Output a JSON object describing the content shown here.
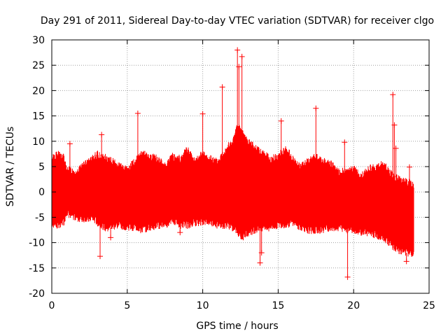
{
  "chart_data": {
    "type": "scatter",
    "title": "Day 291 of 2011, Sidereal Day-to-day VTEC variation (SDTVAR) for receiver clgo",
    "xlabel": "GPS time / hours",
    "ylabel": "SDTVAR / TECUs",
    "xlim": [
      0,
      25
    ],
    "ylim": [
      -20,
      30
    ],
    "xticks": [
      0,
      5,
      10,
      15,
      20,
      25
    ],
    "yticks": [
      -20,
      -15,
      -10,
      -5,
      0,
      5,
      10,
      15,
      20,
      25,
      30
    ],
    "xtick_labels": [
      "0",
      "5",
      "10",
      "15",
      "20",
      "25"
    ],
    "ytick_labels": [
      "-20",
      "-15",
      "-10",
      "-5",
      "0",
      "5",
      "10",
      "15",
      "20",
      "25",
      "30"
    ],
    "grid": true,
    "color": "#ff0000",
    "marker": "+",
    "envelope": {
      "x": [
        0.0,
        0.4,
        0.8,
        1.0,
        1.2,
        1.6,
        2.0,
        2.5,
        3.0,
        3.5,
        4.0,
        4.5,
        5.0,
        5.5,
        6.0,
        6.5,
        7.0,
        7.5,
        8.0,
        8.5,
        9.0,
        9.5,
        10.0,
        10.5,
        11.0,
        11.5,
        12.0,
        12.3,
        12.6,
        13.0,
        13.5,
        14.0,
        14.5,
        15.0,
        15.5,
        16.0,
        16.5,
        17.0,
        17.5,
        18.0,
        18.5,
        19.0,
        19.5,
        20.0,
        20.5,
        21.0,
        21.5,
        22.0,
        22.5,
        23.0,
        23.5,
        24.0
      ],
      "upper": [
        7.0,
        7.5,
        7.0,
        4.0,
        4.5,
        4.0,
        5.0,
        6.0,
        7.5,
        7.0,
        6.0,
        5.0,
        4.5,
        6.0,
        7.5,
        7.0,
        6.5,
        5.5,
        7.0,
        6.5,
        8.5,
        6.0,
        7.5,
        6.5,
        6.0,
        8.5,
        10.0,
        13.0,
        12.0,
        10.0,
        8.5,
        7.5,
        6.5,
        7.0,
        8.5,
        6.5,
        5.0,
        6.0,
        7.0,
        6.0,
        5.5,
        4.0,
        4.0,
        4.5,
        3.0,
        4.5,
        5.0,
        5.5,
        3.5,
        2.5,
        2.0,
        1.5
      ],
      "lower": [
        -6.5,
        -6.5,
        -6.0,
        -4.0,
        -4.5,
        -5.0,
        -5.5,
        -5.0,
        -6.0,
        -7.0,
        -7.0,
        -6.5,
        -7.0,
        -7.0,
        -7.5,
        -7.0,
        -6.5,
        -6.5,
        -5.5,
        -6.5,
        -6.5,
        -6.0,
        -6.0,
        -6.0,
        -6.5,
        -6.5,
        -7.0,
        -8.0,
        -9.0,
        -8.0,
        -7.5,
        -7.0,
        -7.0,
        -6.5,
        -6.5,
        -6.0,
        -7.0,
        -7.5,
        -7.5,
        -7.5,
        -7.0,
        -7.0,
        -7.5,
        -7.5,
        -8.0,
        -8.0,
        -8.5,
        -9.0,
        -10.5,
        -11.5,
        -12.0,
        -12.0
      ]
    },
    "outliers": {
      "x": [
        12.3,
        12.6,
        12.4,
        11.3,
        10.0,
        5.7,
        3.3,
        1.2,
        17.5,
        22.6,
        22.7,
        22.8,
        23.7,
        19.4,
        19.6,
        3.2,
        3.9,
        13.8,
        23.5,
        13.9,
        15.2,
        6.5,
        8.5
      ],
      "y": [
        28.0,
        26.7,
        24.7,
        20.7,
        15.4,
        15.5,
        11.3,
        9.5,
        16.5,
        19.2,
        13.2,
        8.6,
        4.9,
        9.8,
        -16.8,
        -12.7,
        -9.0,
        -14.0,
        -13.7,
        -12.0,
        14.0,
        -7.0,
        -8.0
      ]
    }
  }
}
